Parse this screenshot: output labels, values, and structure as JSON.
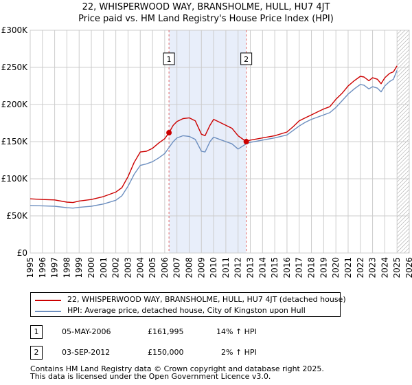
{
  "header": {
    "title_line1": "22, WHISPERWOOD WAY, BRANSHOLME, HULL, HU7 4JT",
    "title_line2": "Price paid vs. HM Land Registry's House Price Index (HPI)"
  },
  "colors": {
    "property_line": "#cc0000",
    "hpi_line": "#6c8ebf",
    "shade": "#e8eefa",
    "marker_vline": "#e06666",
    "grid": "#cccccc"
  },
  "chart_data": {
    "type": "line",
    "title": "Price paid vs. HM Land Registry's House Price Index (HPI)",
    "xlabel": "",
    "ylabel": "",
    "xlim": [
      1995,
      2026
    ],
    "ylim": [
      0,
      300000
    ],
    "y_ticks": [
      {
        "value": 0,
        "label": "£0"
      },
      {
        "value": 50000,
        "label": "£50K"
      },
      {
        "value": 100000,
        "label": "£100K"
      },
      {
        "value": 150000,
        "label": "£150K"
      },
      {
        "value": 200000,
        "label": "£200K"
      },
      {
        "value": 250000,
        "label": "£250K"
      },
      {
        "value": 300000,
        "label": "£300K"
      }
    ],
    "x_ticks": [
      "1995",
      "1996",
      "1997",
      "1998",
      "1999",
      "2000",
      "2001",
      "2002",
      "2003",
      "2004",
      "2005",
      "2006",
      "2007",
      "2008",
      "2009",
      "2010",
      "2011",
      "2012",
      "2013",
      "2014",
      "2015",
      "2016",
      "2017",
      "2018",
      "2019",
      "2020",
      "2021",
      "2022",
      "2023",
      "2024",
      "2025",
      "2026"
    ],
    "grid": true,
    "shaded_region": {
      "from": 2006.35,
      "to": 2012.67
    },
    "forecast_hatch_from": 2025.0,
    "series": [
      {
        "name": "22, WHISPERWOOD WAY, BRANSHOLME, HULL, HU7 4JT (detached house)",
        "color": "#cc0000",
        "x": [
          1995,
          1996,
          1997,
          1998,
          1998.5,
          1999,
          2000,
          2001,
          2002,
          2002.5,
          2003,
          2003.5,
          2004,
          2004.5,
          2005,
          2005.5,
          2006,
          2006.35,
          2006.7,
          2007,
          2007.5,
          2008,
          2008.5,
          2009,
          2009.3,
          2009.7,
          2010,
          2010.5,
          2011,
          2011.5,
          2012,
          2012.67,
          2013,
          2014,
          2015,
          2016,
          2016.5,
          2017,
          2017.5,
          2018,
          2018.5,
          2019,
          2019.5,
          2020,
          2020.5,
          2021,
          2021.5,
          2022,
          2022.3,
          2022.7,
          2023,
          2023.4,
          2023.7,
          2024,
          2024.4,
          2024.7,
          2025
        ],
        "values": [
          73000,
          72000,
          71500,
          68500,
          68000,
          70000,
          72000,
          76000,
          82000,
          88000,
          103000,
          122000,
          136000,
          137000,
          141000,
          148000,
          154000,
          161995,
          172000,
          177000,
          181000,
          182000,
          178000,
          160000,
          158000,
          172000,
          180000,
          176000,
          172000,
          168000,
          158000,
          150000,
          152000,
          155000,
          158000,
          163000,
          170000,
          178000,
          182000,
          186000,
          190000,
          194000,
          197000,
          207000,
          215000,
          225000,
          232000,
          238000,
          237000,
          232000,
          236000,
          234000,
          228000,
          236000,
          242000,
          244000,
          252000
        ]
      },
      {
        "name": "HPI: Average price, detached house, City of Kingston upon Hull",
        "color": "#6c8ebf",
        "x": [
          1995,
          1996,
          1997,
          1998,
          1998.5,
          1999,
          2000,
          2001,
          2002,
          2002.5,
          2003,
          2003.5,
          2004,
          2004.5,
          2005,
          2005.5,
          2006,
          2006.35,
          2006.7,
          2007,
          2007.5,
          2008,
          2008.5,
          2009,
          2009.3,
          2009.7,
          2010,
          2010.5,
          2011,
          2011.5,
          2012,
          2012.67,
          2013,
          2014,
          2015,
          2016,
          2016.5,
          2017,
          2017.5,
          2018,
          2018.5,
          2019,
          2019.5,
          2020,
          2020.5,
          2021,
          2021.5,
          2022,
          2022.3,
          2022.7,
          2023,
          2023.4,
          2023.7,
          2024,
          2024.4,
          2024.7,
          2025
        ],
        "values": [
          64000,
          63500,
          63000,
          61000,
          60500,
          61500,
          63000,
          66000,
          71000,
          77000,
          90000,
          106000,
          118000,
          120000,
          123000,
          128000,
          134000,
          142000,
          150000,
          155000,
          158000,
          157000,
          153000,
          137000,
          136000,
          150000,
          156000,
          153000,
          150000,
          147000,
          140000,
          147000,
          149000,
          152000,
          155000,
          159000,
          165000,
          171000,
          176000,
          180000,
          183000,
          186000,
          189000,
          196000,
          205000,
          214000,
          221000,
          227000,
          226000,
          221000,
          224000,
          222000,
          217000,
          225000,
          231000,
          234000,
          246000
        ]
      }
    ],
    "transactions": [
      {
        "label": "1",
        "x": 2006.35,
        "value": 161995
      },
      {
        "label": "2",
        "x": 2012.67,
        "value": 150000
      }
    ]
  },
  "legend": {
    "property_label": "22, WHISPERWOOD WAY, BRANSHOLME, HULL, HU7 4JT (detached house)",
    "hpi_label": "HPI: Average price, detached house, City of Kingston upon Hull"
  },
  "sales_table": [
    {
      "num": "1",
      "date": "05-MAY-2006",
      "price": "£161,995",
      "hpi_change": "14% ↑ HPI"
    },
    {
      "num": "2",
      "date": "03-SEP-2012",
      "price": "£150,000",
      "hpi_change": "2% ↑ HPI"
    }
  ],
  "footer": {
    "line1": "Contains HM Land Registry data © Crown copyright and database right 2025.",
    "line2": "This data is licensed under the Open Government Licence v3.0."
  }
}
